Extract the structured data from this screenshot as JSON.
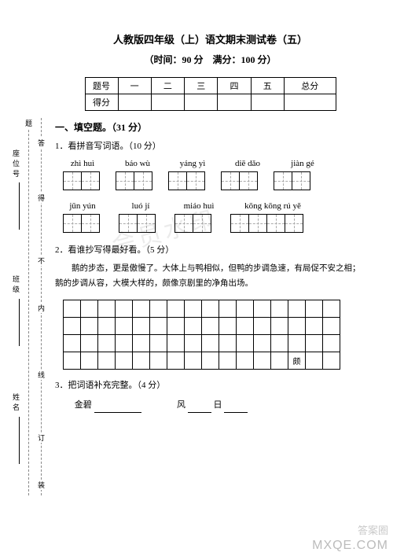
{
  "title": "人教版四年级（上）语文期末测试卷（五）",
  "subtitle": "（时间：90 分　满分：100 分）",
  "score_table": {
    "row1": [
      "题号",
      "一",
      "二",
      "三",
      "四",
      "五",
      "总分"
    ],
    "row2_label": "得分"
  },
  "section1": {
    "heading": "一、填空题。（31 分）",
    "q1": {
      "text": "1．看拼音写词语。（10 分）",
      "row1_pinyin": [
        "zhì huì",
        "báo wù",
        "yáng yì",
        "diē dǎo",
        "jiàn gé"
      ],
      "row1_boxes": [
        2,
        2,
        2,
        2,
        2
      ],
      "row2_pinyin": [
        "jūn yún",
        "luó jí",
        "miáo huì",
        "kōng kōng rú yě"
      ],
      "row2_boxes": [
        2,
        2,
        2,
        4
      ]
    },
    "q2": {
      "text": "2．看谁抄写得最好看。（5 分）",
      "paragraph": "鹅的步态，更是傲慢了。大体上与鸭相似，但鸭的步调急速，有局促不安之相；鹅的步调从容，大模大样的，颇像京剧里的净角出场。",
      "grid_rows": 4,
      "grid_cols": 16,
      "grid_hint_cell": {
        "row": 3,
        "col": 13,
        "text": "颇"
      }
    },
    "q3": {
      "text": "3．把词语补充完整。（4 分）",
      "line": {
        "prefix": "金碧",
        "mid": "风",
        "mid2": "日"
      }
    }
  },
  "vertical": {
    "outer": [
      "答",
      "得",
      "不",
      "内",
      "线",
      "订",
      "装"
    ],
    "fields": [
      "座位号",
      "班级",
      "姓名"
    ],
    "inner": [
      "题"
    ]
  },
  "watermarks": {
    "w1": "会员水印",
    "footer1": "MXQE.COM",
    "footer2": "答案圈"
  },
  "colors": {
    "bg": "#ffffff",
    "text": "#000000",
    "dash": "#aaaaaa",
    "wm": "rgba(0,0,0,0.08)"
  }
}
